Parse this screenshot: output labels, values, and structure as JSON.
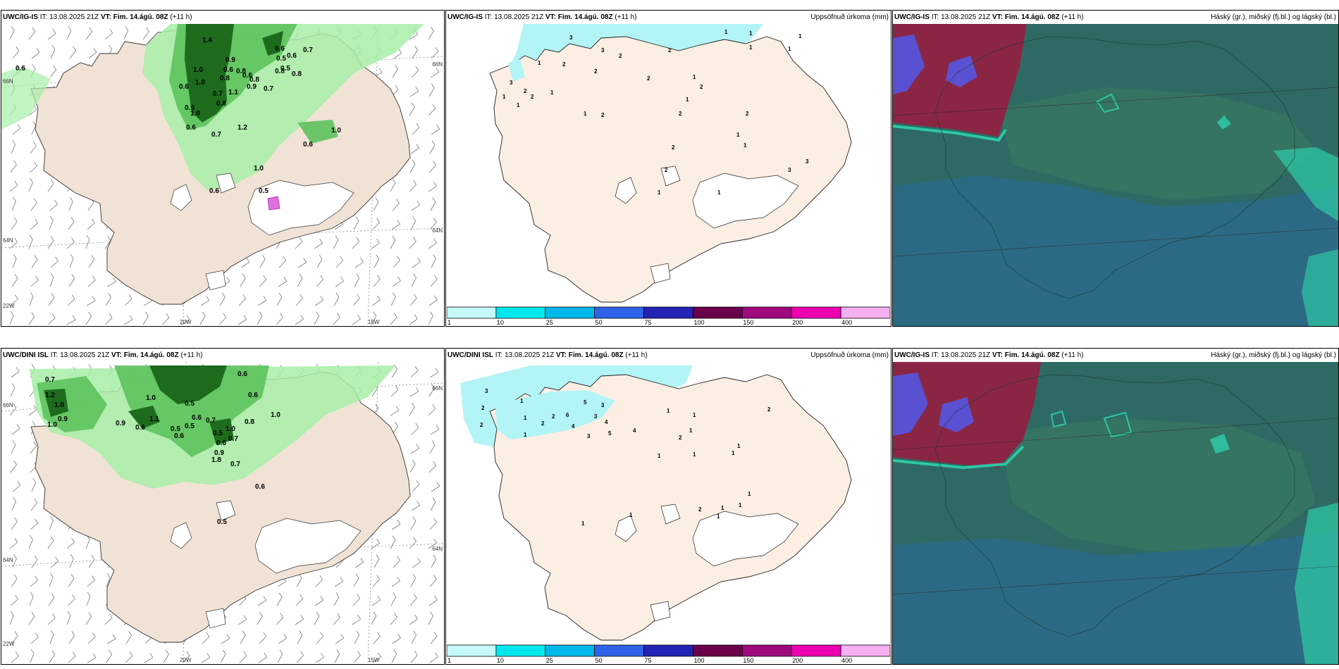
{
  "panels": [
    {
      "id": "r1c1",
      "model": "UWC/IG-IS",
      "it_label": "IT:",
      "it_value": "13.08.2025 21Z",
      "vt_label": "VT:",
      "vt_value": "Fim. 14.ágú. 08Z",
      "lead": "(+11 h)",
      "right_title": "",
      "axis": {
        "left_top": "66N",
        "left_mid": "64N",
        "left_bot": "22W",
        "bottom_a": "20W",
        "bottom_b": "15W",
        "right_top": "66N",
        "right_mid": "64N"
      },
      "values": [
        "0.6",
        "1.4",
        "0.9",
        "0.6",
        "0.7",
        "1.0",
        "0.6",
        "0.5",
        "0.8",
        "0.6",
        "0.8",
        "0.8",
        "0.8",
        "0.7",
        "1.0",
        "0.6",
        "0.9",
        "0.7",
        "0.6",
        "0.5",
        "1.1",
        "0.8",
        "0.8",
        "1.0",
        "1.2",
        "0.6",
        "0.7",
        "1.0",
        "0.6",
        "1.0",
        "0.9",
        "0.5",
        "0.6"
      ]
    },
    {
      "id": "r1c2",
      "model": "UWC/IG-IS",
      "it_label": "IT:",
      "it_value": "13.08.2025 21Z",
      "vt_label": "VT:",
      "vt_value": "Fim. 14.ágú. 08Z",
      "lead": "(+11 h)",
      "right_title": "Uppsöfnuð úrkoma (mm)",
      "values": [
        "3",
        "1",
        "1",
        "1",
        "3",
        "2",
        "1",
        "2",
        "2",
        "2",
        "2",
        "1",
        "2",
        "1",
        "2",
        "3",
        "1",
        "2",
        "1",
        "1",
        "1",
        "2",
        "1",
        "1",
        "2",
        "2",
        "1",
        "1",
        "3",
        "2",
        "2",
        "1",
        "1",
        "3"
      ],
      "legend": {
        "ticks": [
          "1",
          "10",
          "25",
          "50",
          "75",
          "100",
          "150",
          "200",
          "400"
        ]
      }
    },
    {
      "id": "r1c3",
      "model": "UWC/IG-IS",
      "it_label": "IT:",
      "it_value": "13.08.2025 21Z",
      "vt_label": "VT:",
      "vt_value": "Fim. 14.ágú. 08Z",
      "lead": "(+11 h)",
      "right_title": "Háský (gr.), miðský (fj.bl.) og lágský (bl.)"
    },
    {
      "id": "r2c1",
      "model": "UWC/DINI ISL",
      "it_label": "IT:",
      "it_value": "13.08.2025 21Z",
      "vt_label": "VT:",
      "vt_value": "Fim. 14.ágú. 08Z",
      "lead": "(+11 h)",
      "right_title": "",
      "axis": {
        "left_top": "66N",
        "left_mid": "64N",
        "left_bot": "22W",
        "bottom_a": "20W",
        "bottom_b": "15W",
        "right_top": "66N",
        "right_mid": "64N"
      },
      "values": [
        "0.7",
        "1.2",
        "1.0",
        "0.9",
        "1.0",
        "0.9",
        "0.6",
        "1.0",
        "0.5",
        "0.6",
        "0.7",
        "0.8",
        "1.0",
        "0.6",
        "0.6",
        "0.5",
        "0.6",
        "0.9",
        "0.5",
        "1.1",
        "0.7",
        "0.5",
        "1.8",
        "0.6",
        "1.0",
        "0.7",
        "0.6",
        "0.5"
      ]
    },
    {
      "id": "r2c2",
      "model": "UWC/DINI ISL",
      "it_label": "IT:",
      "it_value": "13.08.2025 21Z",
      "vt_label": "VT:",
      "vt_value": "Fim. 14.ágú. 08Z",
      "lead": "(+11 h)",
      "right_title": "Uppsöfnuð úrkoma (mm)",
      "values": [
        "3",
        "1",
        "2",
        "5",
        "3",
        "1",
        "2",
        "1",
        "2",
        "6",
        "4",
        "3",
        "3",
        "4",
        "5",
        "2",
        "4",
        "1",
        "1",
        "1",
        "2",
        "1",
        "1",
        "1",
        "1",
        "2",
        "1",
        "1",
        "2",
        "1",
        "1",
        "1",
        "1"
      ],
      "legend": {
        "ticks": [
          "1",
          "10",
          "25",
          "50",
          "75",
          "100",
          "150",
          "200",
          "400"
        ]
      }
    },
    {
      "id": "r2c3",
      "model": "UWC/IG-IS",
      "it_label": "IT:",
      "it_value": "13.08.2025 21Z",
      "vt_label": "VT:",
      "vt_value": "Fim. 14.ágú. 08Z",
      "lead": "(+11 h)",
      "right_title": "Háský (gr.), miðský (fj.bl.) og lágský (bl.)"
    }
  ],
  "legend_colors": [
    "#c6fafa",
    "#00e8ee",
    "#00b8ea",
    "#2f64e8",
    "#2323b5",
    "#6b004a",
    "#a0087e",
    "#ee00b0",
    "#f4b0f0"
  ],
  "colors": {
    "land": "#f0e3d5",
    "land_pale": "#fbefe4",
    "precip_light": "#a8eea8",
    "precip_mid": "#5dc25d",
    "precip_dark": "#1e6b1e",
    "snow": "#ffffff",
    "cloud_bg": "#2e6a63",
    "cloud_mid": "#3d7a63",
    "cloud_blue": "#2b6a88",
    "cloud_red": "#8a2644",
    "cloud_violet": "#5a50d2",
    "cloud_teal": "#2dc7a4",
    "cyan_precip": "#b3f4f6"
  }
}
